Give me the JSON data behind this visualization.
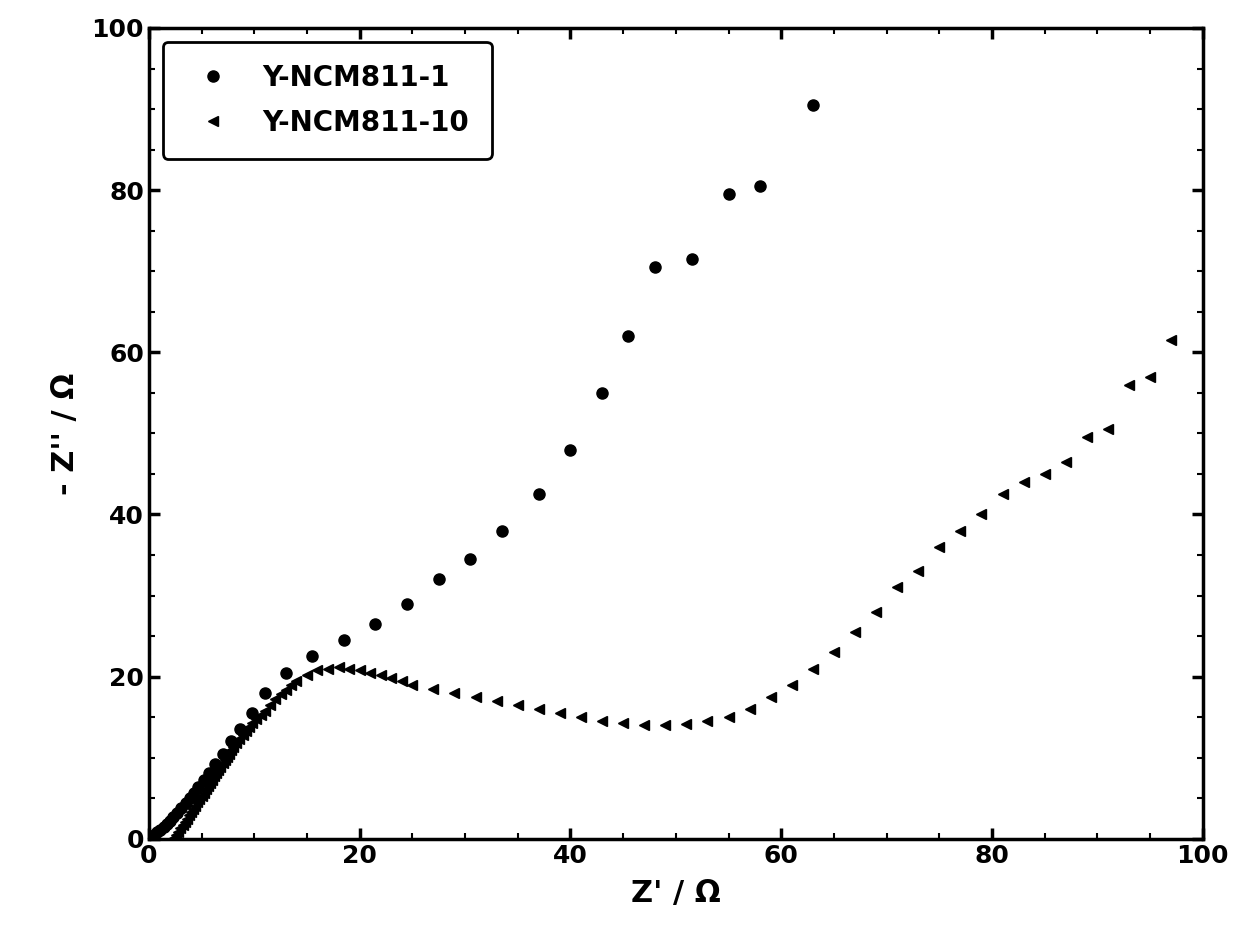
{
  "series1_label": "Y-NCM811-1",
  "series2_label": "Y-NCM811-10",
  "xlabel": "Z' / Ω",
  "ylabel": "- Z'' / Ω",
  "xlim": [
    0,
    100
  ],
  "ylim": [
    0,
    100
  ],
  "xticks": [
    0,
    20,
    40,
    60,
    80,
    100
  ],
  "yticks": [
    0,
    20,
    40,
    60,
    80,
    100
  ],
  "marker1": "o",
  "marker2": "<",
  "color": "black",
  "markersize1": 8,
  "markersize2": 7,
  "series1_x": [
    0.5,
    0.8,
    1.1,
    1.4,
    1.7,
    2.0,
    2.3,
    2.7,
    3.1,
    3.5,
    3.9,
    4.3,
    4.7,
    5.2,
    5.7,
    6.3,
    7.0,
    7.8,
    8.7,
    9.8,
    11.0,
    13.0,
    15.5,
    18.5,
    21.5,
    24.5,
    27.5,
    30.5,
    33.5,
    37.0,
    40.0,
    43.0,
    45.5,
    48.0,
    51.5,
    55.0,
    58.0,
    63.0
  ],
  "series1_y": [
    0.5,
    0.8,
    1.1,
    1.4,
    1.8,
    2.2,
    2.7,
    3.2,
    3.8,
    4.4,
    5.0,
    5.7,
    6.4,
    7.2,
    8.1,
    9.2,
    10.5,
    12.0,
    13.5,
    15.5,
    18.0,
    20.5,
    22.5,
    24.5,
    26.5,
    29.0,
    32.0,
    34.5,
    38.0,
    42.5,
    48.0,
    55.0,
    62.0,
    70.5,
    71.5,
    79.5,
    80.5,
    90.5
  ],
  "series2_x": [
    0.2,
    0.4,
    0.6,
    0.8,
    1.0,
    1.2,
    1.4,
    1.6,
    1.8,
    2.0,
    2.2,
    2.4,
    2.6,
    2.8,
    3.0,
    3.2,
    3.4,
    3.6,
    3.8,
    4.0,
    4.2,
    4.4,
    4.6,
    4.8,
    5.0,
    5.2,
    5.4,
    5.6,
    5.8,
    6.0,
    6.2,
    6.4,
    6.6,
    6.8,
    7.0,
    7.2,
    7.4,
    7.6,
    7.8,
    8.0,
    8.3,
    8.6,
    8.9,
    9.2,
    9.5,
    9.8,
    10.2,
    10.6,
    11.0,
    11.5,
    12.0,
    12.5,
    13.0,
    13.5,
    14.0,
    15.0,
    16.0,
    17.0,
    18.0,
    19.0,
    20.0,
    21.0,
    22.0,
    23.0,
    24.0,
    25.0,
    27.0,
    29.0,
    31.0,
    33.0,
    35.0,
    37.0,
    39.0,
    41.0,
    43.0,
    45.0,
    47.0,
    49.0,
    51.0,
    53.0,
    55.0,
    57.0,
    59.0,
    61.0,
    63.0,
    65.0,
    67.0,
    69.0,
    71.0,
    73.0,
    75.0,
    77.0,
    79.0,
    81.0,
    83.0,
    85.0,
    87.0,
    89.0,
    91.0,
    93.0,
    95.0,
    97.0
  ],
  "series2_y": [
    -0.5,
    -0.8,
    -1.0,
    -1.1,
    -1.2,
    -1.2,
    -1.1,
    -1.0,
    -0.8,
    -0.5,
    -0.2,
    0.1,
    0.5,
    0.9,
    1.3,
    1.7,
    2.1,
    2.5,
    2.9,
    3.3,
    3.7,
    4.1,
    4.5,
    4.9,
    5.3,
    5.7,
    6.1,
    6.5,
    6.9,
    7.3,
    7.7,
    8.1,
    8.5,
    8.9,
    9.3,
    9.7,
    10.1,
    10.5,
    10.9,
    11.3,
    11.8,
    12.3,
    12.8,
    13.3,
    13.8,
    14.3,
    14.8,
    15.3,
    15.8,
    16.5,
    17.2,
    17.8,
    18.4,
    19.0,
    19.5,
    20.2,
    20.8,
    21.0,
    21.2,
    21.0,
    20.8,
    20.5,
    20.2,
    19.8,
    19.5,
    19.0,
    18.5,
    18.0,
    17.5,
    17.0,
    16.5,
    16.0,
    15.5,
    15.0,
    14.5,
    14.3,
    14.0,
    14.0,
    14.2,
    14.5,
    15.0,
    16.0,
    17.5,
    19.0,
    21.0,
    23.0,
    25.5,
    28.0,
    31.0,
    33.0,
    36.0,
    38.0,
    40.0,
    42.5,
    44.0,
    45.0,
    46.5,
    49.5,
    50.5,
    56.0,
    57.0,
    61.5
  ]
}
